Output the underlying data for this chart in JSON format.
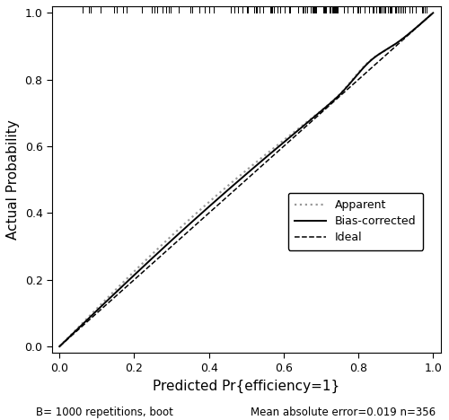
{
  "xlabel": "Predicted Pr{efficiency=1}",
  "ylabel": "Actual Probability",
  "xlim": [
    -0.02,
    1.02
  ],
  "ylim": [
    -0.02,
    1.02
  ],
  "xticks": [
    -0.0,
    0.2,
    0.4,
    0.6,
    0.8,
    1.0
  ],
  "yticks": [
    0.0,
    0.2,
    0.4,
    0.6,
    0.8,
    1.0
  ],
  "footer_left": "B= 1000 repetitions, boot",
  "footer_right": "Mean absolute error=0.019 n=356",
  "legend_labels": [
    "Apparent",
    "Bias-corrected",
    "Ideal"
  ],
  "bg_color": "#ffffff",
  "tick_fontsize": 9,
  "label_fontsize": 11,
  "footer_fontsize": 8.5,
  "apparent_color": "#999999",
  "bc_color": "#000000",
  "ideal_color": "#000000"
}
